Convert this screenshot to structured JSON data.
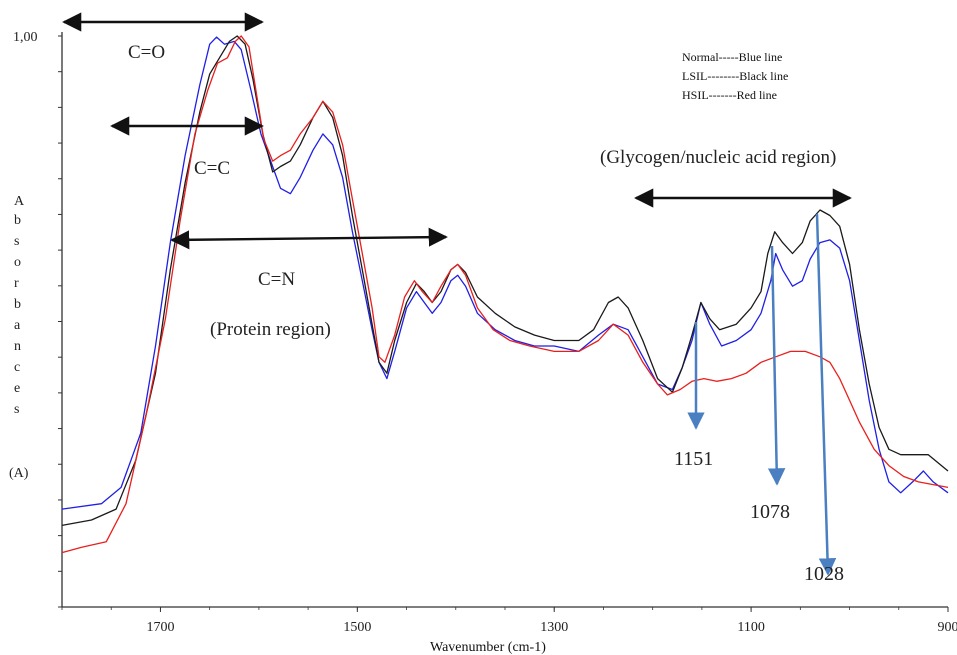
{
  "chart_data": {
    "type": "line",
    "title": "",
    "xlabel": "Wavenumber (cm-1)",
    "ylabel_letters": [
      "A",
      "b",
      "s",
      "o",
      "r",
      "b",
      "a",
      "n",
      "c",
      "e",
      "s"
    ],
    "ylabel_unit": "(A)",
    "ytick_top_label": "1,00",
    "xlim": [
      1800,
      900
    ],
    "ylim": [
      0,
      1.0
    ],
    "x_ticks": [
      {
        "value": 1700,
        "label": "1700"
      },
      {
        "value": 1500,
        "label": "1500"
      },
      {
        "value": 1300,
        "label": "1300"
      },
      {
        "value": 1100,
        "label": "1100"
      },
      {
        "value": 900,
        "label": "900"
      }
    ],
    "legend": {
      "placement": "top-right",
      "entries": [
        "Normal-----Blue line",
        "LSIL--------Black line",
        "HSIL-------Red line"
      ]
    },
    "series": [
      {
        "color": "#1f1fe6",
        "points": [
          [
            1800,
            0.13
          ],
          [
            1760,
            0.14
          ],
          [
            1740,
            0.17
          ],
          [
            1720,
            0.27
          ],
          [
            1705,
            0.43
          ],
          [
            1690,
            0.62
          ],
          [
            1675,
            0.78
          ],
          [
            1660,
            0.91
          ],
          [
            1650,
            0.985
          ],
          [
            1643,
            0.998
          ],
          [
            1635,
            0.985
          ],
          [
            1625,
            0.99
          ],
          [
            1618,
            0.975
          ],
          [
            1608,
            0.9
          ],
          [
            1598,
            0.82
          ],
          [
            1588,
            0.77
          ],
          [
            1578,
            0.72
          ],
          [
            1568,
            0.71
          ],
          [
            1558,
            0.74
          ],
          [
            1545,
            0.79
          ],
          [
            1535,
            0.82
          ],
          [
            1525,
            0.8
          ],
          [
            1515,
            0.74
          ],
          [
            1505,
            0.64
          ],
          [
            1495,
            0.55
          ],
          [
            1485,
            0.46
          ],
          [
            1478,
            0.4
          ],
          [
            1470,
            0.37
          ],
          [
            1462,
            0.42
          ],
          [
            1450,
            0.5
          ],
          [
            1440,
            0.53
          ],
          [
            1432,
            0.51
          ],
          [
            1424,
            0.49
          ],
          [
            1415,
            0.51
          ],
          [
            1405,
            0.55
          ],
          [
            1398,
            0.56
          ],
          [
            1390,
            0.54
          ],
          [
            1378,
            0.49
          ],
          [
            1360,
            0.46
          ],
          [
            1340,
            0.44
          ],
          [
            1320,
            0.43
          ],
          [
            1300,
            0.43
          ],
          [
            1275,
            0.42
          ],
          [
            1255,
            0.45
          ],
          [
            1240,
            0.47
          ],
          [
            1225,
            0.46
          ],
          [
            1210,
            0.41
          ],
          [
            1195,
            0.36
          ],
          [
            1180,
            0.35
          ],
          [
            1170,
            0.39
          ],
          [
            1160,
            0.44
          ],
          [
            1151,
            0.51
          ],
          [
            1142,
            0.47
          ],
          [
            1130,
            0.43
          ],
          [
            1115,
            0.44
          ],
          [
            1100,
            0.46
          ],
          [
            1090,
            0.49
          ],
          [
            1080,
            0.55
          ],
          [
            1075,
            0.6
          ],
          [
            1068,
            0.57
          ],
          [
            1058,
            0.54
          ],
          [
            1048,
            0.55
          ],
          [
            1040,
            0.59
          ],
          [
            1030,
            0.62
          ],
          [
            1020,
            0.625
          ],
          [
            1010,
            0.61
          ],
          [
            1000,
            0.55
          ],
          [
            990,
            0.44
          ],
          [
            980,
            0.33
          ],
          [
            970,
            0.24
          ],
          [
            960,
            0.18
          ],
          [
            948,
            0.16
          ],
          [
            936,
            0.18
          ],
          [
            925,
            0.2
          ],
          [
            915,
            0.18
          ],
          [
            900,
            0.16
          ]
        ]
      },
      {
        "color": "#1a1a1a",
        "points": [
          [
            1800,
            0.1
          ],
          [
            1770,
            0.11
          ],
          [
            1745,
            0.13
          ],
          [
            1725,
            0.22
          ],
          [
            1705,
            0.38
          ],
          [
            1690,
            0.57
          ],
          [
            1675,
            0.73
          ],
          [
            1660,
            0.86
          ],
          [
            1650,
            0.93
          ],
          [
            1640,
            0.96
          ],
          [
            1630,
            0.99
          ],
          [
            1622,
            1.0
          ],
          [
            1614,
            0.985
          ],
          [
            1606,
            0.92
          ],
          [
            1596,
            0.82
          ],
          [
            1586,
            0.75
          ],
          [
            1578,
            0.76
          ],
          [
            1568,
            0.77
          ],
          [
            1558,
            0.8
          ],
          [
            1545,
            0.85
          ],
          [
            1535,
            0.88
          ],
          [
            1525,
            0.85
          ],
          [
            1515,
            0.78
          ],
          [
            1505,
            0.67
          ],
          [
            1495,
            0.57
          ],
          [
            1485,
            0.47
          ],
          [
            1478,
            0.4
          ],
          [
            1470,
            0.38
          ],
          [
            1462,
            0.44
          ],
          [
            1450,
            0.51
          ],
          [
            1440,
            0.545
          ],
          [
            1432,
            0.53
          ],
          [
            1424,
            0.51
          ],
          [
            1415,
            0.53
          ],
          [
            1405,
            0.57
          ],
          [
            1398,
            0.58
          ],
          [
            1390,
            0.565
          ],
          [
            1378,
            0.52
          ],
          [
            1360,
            0.49
          ],
          [
            1340,
            0.465
          ],
          [
            1320,
            0.45
          ],
          [
            1300,
            0.44
          ],
          [
            1275,
            0.44
          ],
          [
            1260,
            0.46
          ],
          [
            1245,
            0.51
          ],
          [
            1235,
            0.52
          ],
          [
            1225,
            0.5
          ],
          [
            1210,
            0.44
          ],
          [
            1195,
            0.37
          ],
          [
            1180,
            0.345
          ],
          [
            1170,
            0.39
          ],
          [
            1160,
            0.45
          ],
          [
            1151,
            0.51
          ],
          [
            1142,
            0.48
          ],
          [
            1132,
            0.46
          ],
          [
            1115,
            0.47
          ],
          [
            1100,
            0.5
          ],
          [
            1090,
            0.53
          ],
          [
            1083,
            0.6
          ],
          [
            1076,
            0.64
          ],
          [
            1068,
            0.62
          ],
          [
            1058,
            0.6
          ],
          [
            1048,
            0.62
          ],
          [
            1040,
            0.66
          ],
          [
            1030,
            0.68
          ],
          [
            1020,
            0.67
          ],
          [
            1010,
            0.65
          ],
          [
            1000,
            0.58
          ],
          [
            990,
            0.46
          ],
          [
            980,
            0.36
          ],
          [
            970,
            0.28
          ],
          [
            960,
            0.24
          ],
          [
            948,
            0.23
          ],
          [
            935,
            0.23
          ],
          [
            920,
            0.23
          ],
          [
            900,
            0.2
          ]
        ]
      },
      {
        "color": "#e8201d",
        "points": [
          [
            1800,
            0.05
          ],
          [
            1780,
            0.06
          ],
          [
            1755,
            0.07
          ],
          [
            1735,
            0.14
          ],
          [
            1715,
            0.3
          ],
          [
            1695,
            0.48
          ],
          [
            1680,
            0.66
          ],
          [
            1665,
            0.82
          ],
          [
            1652,
            0.9
          ],
          [
            1642,
            0.95
          ],
          [
            1632,
            0.96
          ],
          [
            1624,
            0.99
          ],
          [
            1618,
            1.0
          ],
          [
            1610,
            0.98
          ],
          [
            1603,
            0.9
          ],
          [
            1595,
            0.81
          ],
          [
            1586,
            0.77
          ],
          [
            1578,
            0.78
          ],
          [
            1568,
            0.79
          ],
          [
            1558,
            0.82
          ],
          [
            1545,
            0.85
          ],
          [
            1535,
            0.88
          ],
          [
            1525,
            0.86
          ],
          [
            1515,
            0.8
          ],
          [
            1505,
            0.7
          ],
          [
            1495,
            0.6
          ],
          [
            1485,
            0.5
          ],
          [
            1478,
            0.41
          ],
          [
            1472,
            0.4
          ],
          [
            1462,
            0.45
          ],
          [
            1452,
            0.52
          ],
          [
            1442,
            0.55
          ],
          [
            1434,
            0.53
          ],
          [
            1424,
            0.51
          ],
          [
            1415,
            0.54
          ],
          [
            1405,
            0.57
          ],
          [
            1398,
            0.58
          ],
          [
            1390,
            0.56
          ],
          [
            1378,
            0.5
          ],
          [
            1362,
            0.46
          ],
          [
            1345,
            0.44
          ],
          [
            1325,
            0.43
          ],
          [
            1300,
            0.42
          ],
          [
            1275,
            0.42
          ],
          [
            1255,
            0.44
          ],
          [
            1240,
            0.47
          ],
          [
            1225,
            0.45
          ],
          [
            1210,
            0.4
          ],
          [
            1195,
            0.36
          ],
          [
            1185,
            0.34
          ],
          [
            1172,
            0.35
          ],
          [
            1160,
            0.365
          ],
          [
            1148,
            0.37
          ],
          [
            1135,
            0.365
          ],
          [
            1120,
            0.37
          ],
          [
            1105,
            0.38
          ],
          [
            1090,
            0.4
          ],
          [
            1075,
            0.41
          ],
          [
            1060,
            0.42
          ],
          [
            1045,
            0.42
          ],
          [
            1030,
            0.41
          ],
          [
            1020,
            0.4
          ],
          [
            1010,
            0.37
          ],
          [
            1000,
            0.33
          ],
          [
            990,
            0.29
          ],
          [
            975,
            0.24
          ],
          [
            960,
            0.21
          ],
          [
            945,
            0.19
          ],
          [
            930,
            0.18
          ],
          [
            915,
            0.175
          ],
          [
            900,
            0.17
          ]
        ]
      }
    ],
    "annotations": {
      "co": "C=O",
      "cc": "C=C",
      "cn": "C=N",
      "protein": "(Protein region)",
      "glycogen": "(Glycogen/nucleic acid region)",
      "peak_1151": "1151",
      "peak_1078": "1078",
      "peak_1028": "1028"
    },
    "colors": {
      "arrow": "#4a7fc1",
      "bracket": "#111111"
    }
  }
}
